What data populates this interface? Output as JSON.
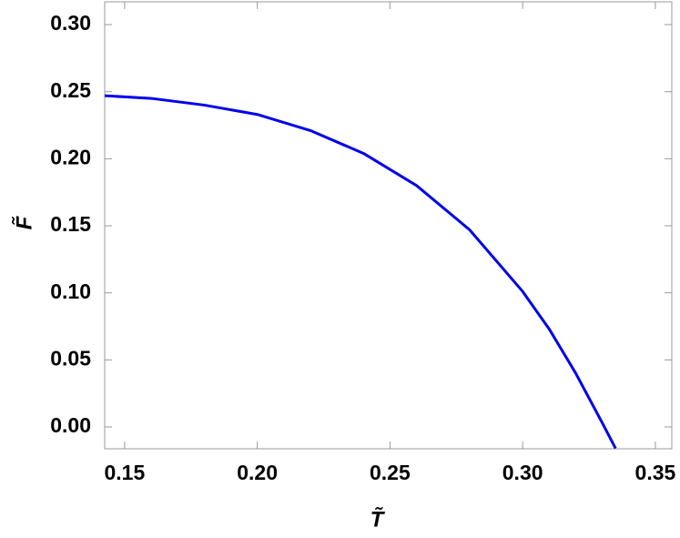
{
  "chart_data": {
    "type": "line",
    "x_label": "T̃",
    "y_label": "F̃",
    "x": [
      0.1425,
      0.16,
      0.18,
      0.2,
      0.22,
      0.24,
      0.26,
      0.28,
      0.3,
      0.31,
      0.32,
      0.33,
      0.335
    ],
    "series": [
      {
        "color": "#0000ee",
        "values": [
          0.247,
          0.245,
          0.24,
          0.233,
          0.221,
          0.204,
          0.18,
          0.147,
          0.101,
          0.073,
          0.04,
          0.003,
          -0.016
        ]
      }
    ],
    "xlim": [
      0.1425,
      0.3562
    ],
    "ylim": [
      -0.0163,
      0.317
    ],
    "xticks": [
      0.15,
      {
        "value": 0.2,
        "label": "0.20"
      },
      0.25,
      {
        "value": 0.3,
        "label": "0.30"
      },
      0.35
    ],
    "yticks": [
      {
        "value": 0,
        "label": "0.00"
      },
      0.05,
      {
        "value": 0.1,
        "label": "0.10"
      },
      0.15,
      {
        "value": 0.2,
        "label": "0.20"
      },
      0.25,
      {
        "value": 0.3,
        "label": "0.30"
      }
    ],
    "grid": false
  }
}
